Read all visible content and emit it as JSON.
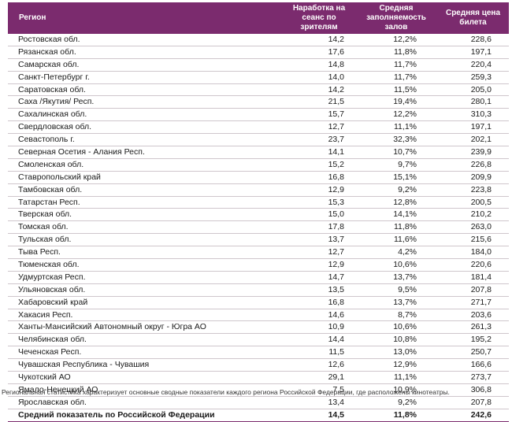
{
  "table": {
    "headers": {
      "region": "Регион",
      "sessions": "Наработка на сеанс по зрителям",
      "occupancy": "Средняя заполняемость залов",
      "price": "Средняя цена билета"
    },
    "rows": [
      {
        "region": "Ростовская обл.",
        "sessions": "14,2",
        "occupancy": "12,2%",
        "price": "228,6"
      },
      {
        "region": "Рязанская обл.",
        "sessions": "17,6",
        "occupancy": "11,8%",
        "price": "197,1"
      },
      {
        "region": "Самарская обл.",
        "sessions": "14,8",
        "occupancy": "11,7%",
        "price": "220,4"
      },
      {
        "region": "Санкт-Петербург г.",
        "sessions": "14,0",
        "occupancy": "11,7%",
        "price": "259,3"
      },
      {
        "region": "Саратовская обл.",
        "sessions": "14,2",
        "occupancy": "11,5%",
        "price": "205,0"
      },
      {
        "region": "Саха /Якутия/ Респ.",
        "sessions": "21,5",
        "occupancy": "19,4%",
        "price": "280,1"
      },
      {
        "region": "Сахалинская обл.",
        "sessions": "15,7",
        "occupancy": "12,2%",
        "price": "310,3"
      },
      {
        "region": "Свердловская обл.",
        "sessions": "12,7",
        "occupancy": "11,1%",
        "price": "197,1"
      },
      {
        "region": "Севастополь г.",
        "sessions": "23,7",
        "occupancy": "32,3%",
        "price": "202,1"
      },
      {
        "region": "Северная Осетия - Алания Респ.",
        "sessions": "14,1",
        "occupancy": "10,7%",
        "price": "239,9"
      },
      {
        "region": "Смоленская обл.",
        "sessions": "15,2",
        "occupancy": "9,7%",
        "price": "226,8"
      },
      {
        "region": "Ставропольский край",
        "sessions": "16,8",
        "occupancy": "15,1%",
        "price": "209,9"
      },
      {
        "region": "Тамбовская обл.",
        "sessions": "12,9",
        "occupancy": "9,2%",
        "price": "223,8"
      },
      {
        "region": "Татарстан Респ.",
        "sessions": "15,3",
        "occupancy": "12,8%",
        "price": "200,5"
      },
      {
        "region": "Тверская обл.",
        "sessions": "15,0",
        "occupancy": "14,1%",
        "price": "210,2"
      },
      {
        "region": "Томская обл.",
        "sessions": "17,8",
        "occupancy": "11,8%",
        "price": "263,0"
      },
      {
        "region": "Тульская обл.",
        "sessions": "13,7",
        "occupancy": "11,6%",
        "price": "215,6"
      },
      {
        "region": "Тыва Респ.",
        "sessions": "12,7",
        "occupancy": "4,2%",
        "price": "184,0"
      },
      {
        "region": "Тюменская обл.",
        "sessions": "12,9",
        "occupancy": "10,6%",
        "price": "220,6"
      },
      {
        "region": "Удмуртская Респ.",
        "sessions": "14,7",
        "occupancy": "13,7%",
        "price": "181,4"
      },
      {
        "region": "Ульяновская обл.",
        "sessions": "13,5",
        "occupancy": "9,5%",
        "price": "207,8"
      },
      {
        "region": "Хабаровский край",
        "sessions": "16,8",
        "occupancy": "13,7%",
        "price": "271,7"
      },
      {
        "region": "Хакасия Респ.",
        "sessions": "14,6",
        "occupancy": "8,7%",
        "price": "203,6"
      },
      {
        "region": "Ханты-Мансийский Автономный округ - Югра АО",
        "sessions": "10,9",
        "occupancy": "10,6%",
        "price": "261,3"
      },
      {
        "region": "Челябинская обл.",
        "sessions": "14,4",
        "occupancy": "10,8%",
        "price": "195,2"
      },
      {
        "region": "Чеченская Респ.",
        "sessions": "11,5",
        "occupancy": "13,0%",
        "price": "250,7"
      },
      {
        "region": "Чувашская Республика - Чувашия",
        "sessions": "12,6",
        "occupancy": "12,9%",
        "price": "166,6"
      },
      {
        "region": "Чукотский АО",
        "sessions": "29,1",
        "occupancy": "11,1%",
        "price": "273,7"
      },
      {
        "region": "Ямало-Ненецкий АО",
        "sessions": "7,5",
        "occupancy": "10,9%",
        "price": "306,8"
      },
      {
        "region": "Ярославская обл.",
        "sessions": "13,4",
        "occupancy": "9,2%",
        "price": "207,8"
      }
    ],
    "total": {
      "region": "Средний показатель по Российской Федерации",
      "sessions": "14,5",
      "occupancy": "11,8%",
      "price": "242,6"
    }
  },
  "footnote": "Региональная статистика характеризует основные сводные показатели каждого региона Российской Федерации, где расположены кинотеатры.",
  "colors": {
    "header_bg": "#7b2b6e",
    "header_text": "#ffffff"
  }
}
